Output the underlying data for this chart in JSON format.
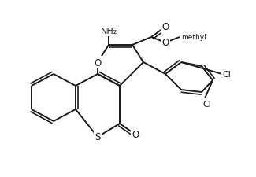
{
  "background_color": "#ffffff",
  "line_color": "#1a1a1a",
  "line_width": 1.5,
  "font_size": 8,
  "atoms": {
    "S": "S",
    "O1": "O",
    "O2": "O",
    "O3": "O",
    "N": "NH₂",
    "Cl1": "Cl",
    "Cl2": "Cl"
  }
}
